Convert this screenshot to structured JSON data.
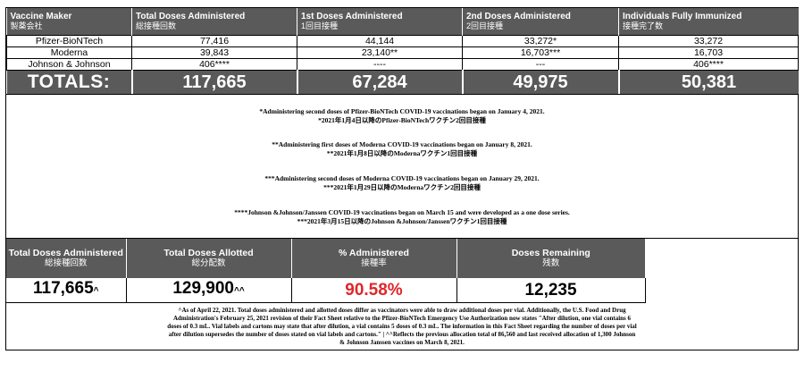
{
  "headers": [
    {
      "en": "Vaccine Maker",
      "jp": "製薬会社"
    },
    {
      "en": "Total Doses Administered",
      "jp": "総接種回数"
    },
    {
      "en": "1st Doses Administered",
      "jp": "1回目接種"
    },
    {
      "en": "2nd Doses Administered",
      "jp": "2回目接種"
    },
    {
      "en": "Individuals Fully Immunized",
      "jp": "接種完了数"
    }
  ],
  "rows": [
    {
      "maker": "Pfizer-BioNTech",
      "total": "77,416",
      "first": "44,144",
      "second": "33,272*",
      "full": "33,272"
    },
    {
      "maker": "Moderna",
      "total": "39,843",
      "first": "23,140**",
      "second": "16,703***",
      "full": "16,703"
    },
    {
      "maker": "Johnson & Johnson",
      "total": "406****",
      "first": "----",
      "second": "---",
      "full": "406****"
    }
  ],
  "totals": {
    "label": "TOTALS:",
    "total": "117,665",
    "first": "67,284",
    "second": "49,975",
    "full": "50,381"
  },
  "notes": [
    {
      "en": "*Administering second doses of Pfizer-BioNTech COVID-19 vaccinations began on January 4, 2021.",
      "jp": "*2021年1月4日以降のPfizer-BioNTechワクチン2回目接種"
    },
    {
      "en": "**Administering first doses of Moderna COVID-19 vaccinations began on January 8, 2021.",
      "jp": "**2021年1月8日以降のModernaワクチン1回目接種"
    },
    {
      "en": "***Administering second doses of Moderna COVID-19 vaccinations began on January 29, 2021.",
      "jp": "***2021年1月29日以降のModernaワクチン2回目接種"
    },
    {
      "en": "****Johnson &Johnson/Janssen COVID-19 vaccinations began on March 15 and were developed as a one dose series.",
      "jp": "***2021年3月15日以降のJohnson &Johnson/Janssenワクチン1回目接種"
    }
  ],
  "summary": {
    "headers": [
      {
        "en": "Total Doses Administered",
        "jp": "総接種回数"
      },
      {
        "en": "Total Doses Allotted",
        "jp": "総分配数"
      },
      {
        "en": "% Administered",
        "jp": "接種率"
      },
      {
        "en": "Doses Remaining",
        "jp": "残数"
      }
    ],
    "values": {
      "administered": "117,665",
      "administered_mark": "^",
      "allotted": "129,900",
      "allotted_mark": "^^",
      "percent": "90.58%",
      "remaining": "12,235"
    },
    "percent_color": "#e0262a"
  },
  "footnote": [
    "^As of April 22, 2021. Total doses administered and allotted doses differ as vaccinators were able to draw additional doses per vial. Additionally, the U.S. Food and Drug",
    "Administration's February 25, 2021 revision of their Fact Sheet relative to the Pfizer-BioNTech Emergency Use Authorization now states \"After dilution, one vial contains 6",
    "doses of 0.3 mL. Vial labels and cartons may state that after dilution, a vial contains 5 doses of 0.3 mL. The information in this Fact Sheet regarding the number of doses per vial",
    "after dilution supersedes the number of doses stated on vial labels and cartons.\" | ^^Reflects the previous allocation total of 86,560 and last received allocation of 1,300 Johnson",
    "& Johnson Janssen vaccines on March 8, 2021."
  ]
}
